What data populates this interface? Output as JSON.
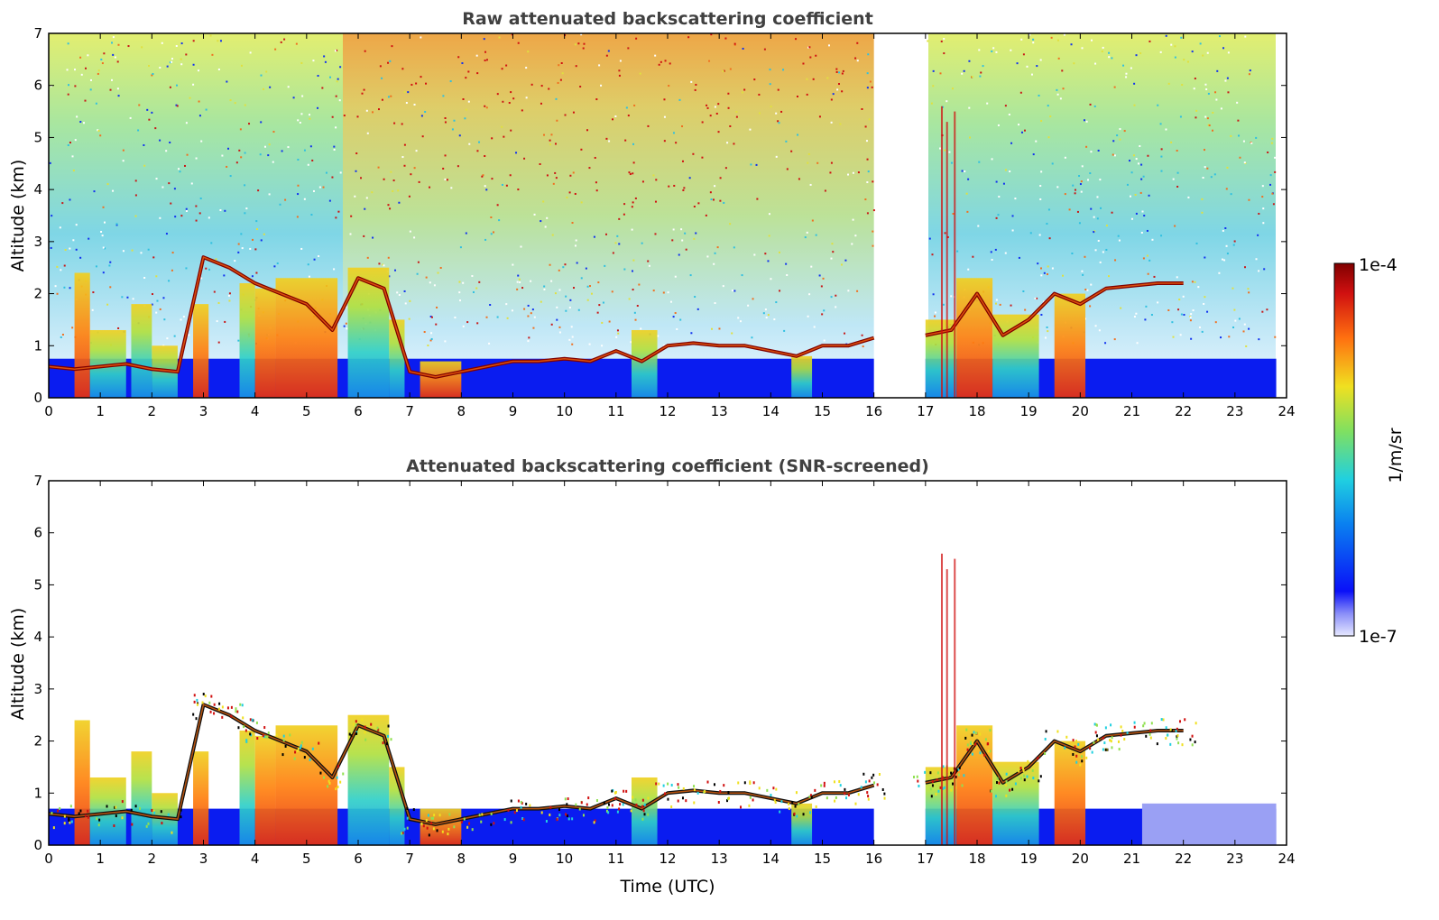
{
  "chart_data": [
    {
      "type": "heatmap",
      "title": "Raw attenuated backscattering coefficient",
      "xlabel": "",
      "ylabel": "Altitude (km)",
      "xlim": [
        0,
        24
      ],
      "ylim": [
        0,
        7
      ],
      "x_ticks": [
        "0",
        "1",
        "2",
        "3",
        "4",
        "5",
        "6",
        "7",
        "8",
        "9",
        "10",
        "11",
        "12",
        "13",
        "14",
        "15",
        "16",
        "17",
        "18",
        "19",
        "20",
        "21",
        "22",
        "23",
        "24"
      ],
      "y_ticks": [
        "0",
        "1",
        "2",
        "3",
        "4",
        "5",
        "6",
        "7"
      ],
      "data_gaps_utc": [
        [
          16.0,
          17.0
        ],
        [
          23.8,
          24.0
        ]
      ],
      "cloud_layer": {
        "time_utc": [
          0,
          0.5,
          1,
          1.5,
          2,
          2.5,
          3,
          3.5,
          4,
          4.5,
          5,
          5.5,
          6,
          6.5,
          7,
          7.5,
          8,
          8.5,
          9,
          9.5,
          10,
          10.5,
          11,
          11.5,
          12,
          12.5,
          13,
          13.5,
          14,
          14.5,
          15,
          15.5,
          16
        ],
        "altitude_km": [
          0.6,
          0.55,
          0.6,
          0.65,
          0.55,
          0.5,
          2.7,
          2.5,
          2.2,
          2.0,
          1.8,
          1.3,
          2.3,
          2.1,
          0.5,
          0.4,
          0.5,
          0.6,
          0.7,
          0.7,
          0.75,
          0.7,
          0.9,
          0.7,
          1.0,
          1.05,
          1.0,
          1.0,
          0.9,
          0.8,
          1.0,
          1.0,
          1.15
        ]
      },
      "cloud_layer_2": {
        "time_utc": [
          17.0,
          17.5,
          18.0,
          18.5,
          19.0,
          19.5,
          20.0,
          20.5,
          21.0,
          21.5,
          22.0
        ],
        "altitude_km": [
          1.2,
          1.3,
          2.0,
          1.2,
          1.5,
          2.0,
          1.8,
          2.1,
          2.15,
          2.2,
          2.2
        ]
      }
    },
    {
      "type": "heatmap",
      "title": "Attenuated backscattering coefficient (SNR-screened)",
      "xlabel": "Time (UTC)",
      "ylabel": "Altitude (km)",
      "xlim": [
        0,
        24
      ],
      "ylim": [
        0,
        7
      ],
      "x_ticks": [
        "0",
        "1",
        "2",
        "3",
        "4",
        "5",
        "6",
        "7",
        "8",
        "9",
        "10",
        "11",
        "12",
        "13",
        "14",
        "15",
        "16",
        "17",
        "18",
        "19",
        "20",
        "21",
        "22",
        "23",
        "24"
      ],
      "y_ticks": [
        "0",
        "1",
        "2",
        "3",
        "4",
        "5",
        "6",
        "7"
      ],
      "data_gaps_utc": [
        [
          16.0,
          17.0
        ],
        [
          23.8,
          24.0
        ]
      ]
    }
  ],
  "colorbar": {
    "label": "1/m/sr",
    "min_label": "1e-7",
    "max_label": "1e-4",
    "scale": "log",
    "colormap": "jet"
  },
  "colors": {
    "title": "#404040",
    "low": "#0a1cf0",
    "cyan": "#20d0e0",
    "green": "#90e050",
    "yellow": "#f0e020",
    "orange": "#ff7010",
    "red": "#d01010",
    "darkred": "#800000"
  }
}
